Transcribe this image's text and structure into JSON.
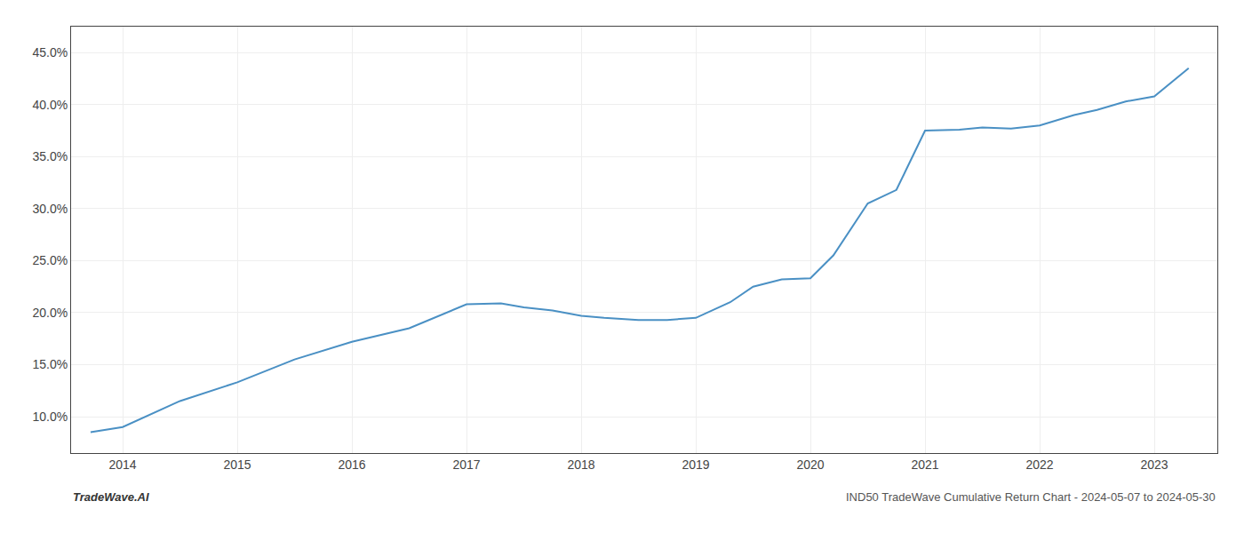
{
  "chart_data": {
    "type": "line",
    "x": [
      2013.72,
      2014.0,
      2014.5,
      2015.0,
      2015.5,
      2016.0,
      2016.5,
      2017.0,
      2017.3,
      2017.5,
      2017.75,
      2018.0,
      2018.2,
      2018.5,
      2018.75,
      2019.0,
      2019.3,
      2019.5,
      2019.75,
      2020.0,
      2020.2,
      2020.5,
      2020.75,
      2021.0,
      2021.3,
      2021.5,
      2021.75,
      2022.0,
      2022.3,
      2022.5,
      2022.75,
      2023.0,
      2023.3
    ],
    "values": [
      8.5,
      9.0,
      11.5,
      13.3,
      15.5,
      17.2,
      18.5,
      20.8,
      20.9,
      20.5,
      20.2,
      19.7,
      19.5,
      19.3,
      19.3,
      19.5,
      21.0,
      22.5,
      23.2,
      23.3,
      25.5,
      30.5,
      31.8,
      37.5,
      37.6,
      37.8,
      37.7,
      38.0,
      39.0,
      39.5,
      40.3,
      40.8,
      43.5
    ],
    "color": "#4a90c4",
    "xlim": [
      2013.55,
      2023.55
    ],
    "xticks": [
      2014,
      2015,
      2016,
      2017,
      2018,
      2019,
      2020,
      2021,
      2022,
      2023
    ],
    "ylim": [
      6.5,
      47.5
    ],
    "yticks": [
      {
        "value": 10.0,
        "label": "10.0%"
      },
      {
        "value": 15.0,
        "label": "15.0%"
      },
      {
        "value": 20.0,
        "label": "20.0%"
      },
      {
        "value": 25.0,
        "label": "25.0%"
      },
      {
        "value": 30.0,
        "label": "30.0%"
      },
      {
        "value": 35.0,
        "label": "35.0%"
      },
      {
        "value": 40.0,
        "label": "40.0%"
      },
      {
        "value": 45.0,
        "label": "45.0%"
      }
    ],
    "grid": true,
    "annotations": [
      "TradeWave.AI",
      "IND50 TradeWave Cumulative Return Chart - 2024-05-07 to 2024-05-30"
    ]
  }
}
